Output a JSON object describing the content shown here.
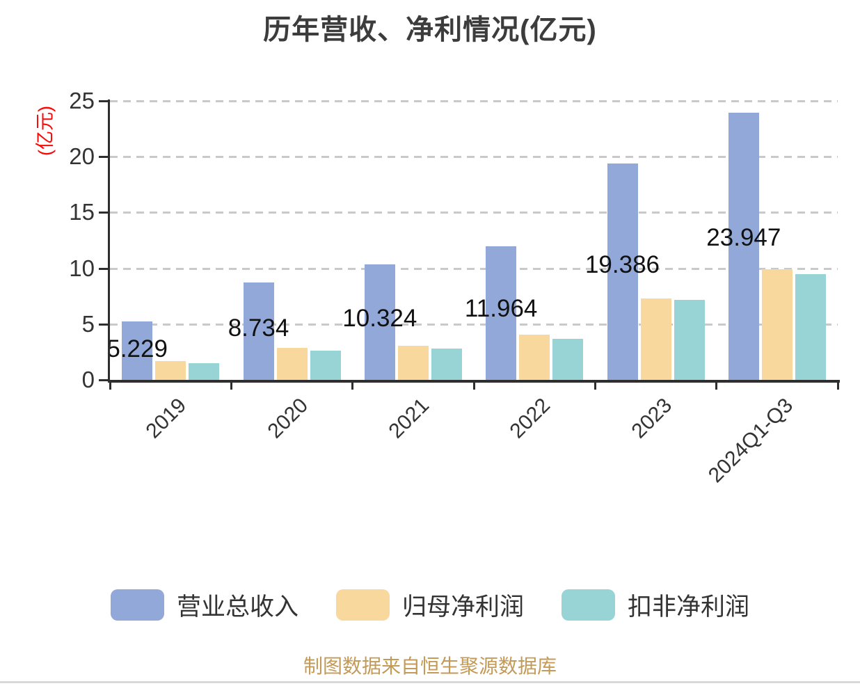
{
  "title": "历年营收、净利情况(亿元)",
  "y_axis_unit": "(亿元)",
  "footer_text": "制图数据来自恒生聚源数据库",
  "colors": {
    "series_revenue": "#92A8D8",
    "series_net_profit": "#F9D89E",
    "series_net_profit_excl": "#98D4D6",
    "axis": "#2e2e2e",
    "grid": "#c9c9c9",
    "value_label": "#111111",
    "y_unit_label": "#fe0606",
    "footer": "#c49a58",
    "tick_label": "#333333"
  },
  "chart_data": {
    "type": "bar",
    "title": "历年营收、净利情况(亿元)",
    "categories": [
      "2019",
      "2020",
      "2021",
      "2022",
      "2023",
      "2024Q1-Q3"
    ],
    "series": [
      {
        "name": "营业总收入",
        "color": "#92A8D8",
        "values": [
          5.229,
          8.734,
          10.324,
          11.964,
          19.386,
          23.947
        ],
        "value_labels": [
          "5.229",
          "8.734",
          "10.324",
          "11.964",
          "19.386",
          "23.947"
        ]
      },
      {
        "name": "归母净利润",
        "color": "#F9D89E",
        "values": [
          1.7,
          2.85,
          3.05,
          4.05,
          7.3,
          9.9
        ]
      },
      {
        "name": "扣非净利润",
        "color": "#98D4D6",
        "values": [
          1.5,
          2.6,
          2.8,
          3.65,
          7.15,
          9.5
        ]
      }
    ],
    "ylabel": "(亿元)",
    "ylim": [
      0,
      25
    ],
    "yticks": [
      0,
      5,
      10,
      15,
      20,
      25
    ],
    "grid": true,
    "grid_style": "dashed",
    "legend_position": "bottom",
    "x_label_rotation": 45,
    "footer": "制图数据来自恒生聚源数据库"
  }
}
